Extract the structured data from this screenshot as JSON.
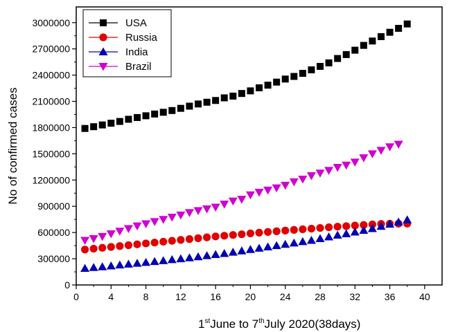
{
  "chart_data": {
    "type": "scatter",
    "xlabel_parts": [
      "1",
      "st",
      "June to 7",
      "th",
      "July 2020(38days)"
    ],
    "ylabel": "No of confirmed cases",
    "xlim": [
      0,
      42
    ],
    "ylim": [
      0,
      3180000
    ],
    "x_ticks": [
      0,
      4,
      8,
      12,
      16,
      20,
      24,
      28,
      32,
      36,
      40
    ],
    "y_ticks": [
      0,
      300000,
      600000,
      900000,
      1200000,
      1500000,
      1800000,
      2100000,
      2400000,
      2700000,
      3000000
    ],
    "legend_position": "top-left",
    "series": [
      {
        "name": "USA",
        "marker": "square",
        "color": "#000000",
        "x": [
          1,
          2,
          3,
          4,
          5,
          6,
          7,
          8,
          9,
          10,
          11,
          12,
          13,
          14,
          15,
          16,
          17,
          18,
          19,
          20,
          21,
          22,
          23,
          24,
          25,
          26,
          27,
          28,
          29,
          30,
          31,
          32,
          33,
          34,
          35,
          36,
          37,
          38
        ],
        "values": [
          1790000,
          1810000,
          1830000,
          1850000,
          1870000,
          1895000,
          1915000,
          1935000,
          1955000,
          1975000,
          1995000,
          2020000,
          2045000,
          2070000,
          2090000,
          2110000,
          2140000,
          2160000,
          2190000,
          2220000,
          2255000,
          2285000,
          2320000,
          2355000,
          2385000,
          2420000,
          2460000,
          2500000,
          2540000,
          2590000,
          2635000,
          2685000,
          2740000,
          2790000,
          2840000,
          2890000,
          2935000,
          2985000
        ]
      },
      {
        "name": "Russia",
        "marker": "circle",
        "color": "#e00000",
        "x": [
          1,
          2,
          3,
          4,
          5,
          6,
          7,
          8,
          9,
          10,
          11,
          12,
          13,
          14,
          15,
          16,
          17,
          18,
          19,
          20,
          21,
          22,
          23,
          24,
          25,
          26,
          27,
          28,
          29,
          30,
          31,
          32,
          33,
          34,
          35,
          36,
          37,
          38
        ],
        "values": [
          405000,
          415000,
          425000,
          435000,
          445000,
          455000,
          465000,
          475000,
          485000,
          495000,
          505000,
          515000,
          525000,
          535000,
          545000,
          555000,
          563000,
          572000,
          580000,
          590000,
          598000,
          606000,
          614000,
          622000,
          630000,
          637000,
          644000,
          652000,
          660000,
          667000,
          673000,
          680000,
          686000,
          692000,
          698000,
          700000,
          701000,
          702000
        ]
      },
      {
        "name": "India",
        "marker": "triangle-up",
        "color": "#0000b4",
        "x": [
          1,
          2,
          3,
          4,
          5,
          6,
          7,
          8,
          9,
          10,
          11,
          12,
          13,
          14,
          15,
          16,
          17,
          18,
          19,
          20,
          21,
          22,
          23,
          24,
          25,
          26,
          27,
          28,
          29,
          30,
          31,
          32,
          33,
          34,
          35,
          36,
          37,
          38
        ],
        "values": [
          190000,
          200000,
          208000,
          218000,
          228000,
          238000,
          248000,
          258000,
          268000,
          278000,
          290000,
          300000,
          310000,
          322000,
          335000,
          348000,
          360000,
          375000,
          390000,
          405000,
          420000,
          435000,
          450000,
          465000,
          480000,
          495000,
          510000,
          530000,
          550000,
          570000,
          585000,
          605000,
          625000,
          645000,
          670000,
          695000,
          720000,
          745000
        ]
      },
      {
        "name": "Brazil",
        "marker": "triangle-down",
        "color": "#d000d0",
        "x": [
          1,
          2,
          3,
          4,
          5,
          6,
          7,
          8,
          9,
          10,
          11,
          12,
          13,
          14,
          15,
          16,
          17,
          18,
          19,
          20,
          21,
          22,
          23,
          24,
          25,
          26,
          27,
          28,
          29,
          30,
          31,
          32,
          33,
          34,
          35,
          36,
          37
        ],
        "values": [
          510000,
          530000,
          555000,
          585000,
          615000,
          645000,
          675000,
          700000,
          725000,
          750000,
          775000,
          800000,
          828000,
          850000,
          870000,
          890000,
          925000,
          960000,
          980000,
          1030000,
          1060000,
          1085000,
          1110000,
          1140000,
          1180000,
          1210000,
          1250000,
          1280000,
          1310000,
          1345000,
          1370000,
          1405000,
          1455000,
          1500000,
          1540000,
          1580000,
          1610000
        ]
      }
    ]
  }
}
